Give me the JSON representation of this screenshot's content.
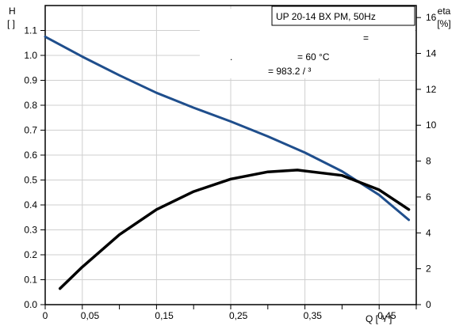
{
  "chart_data": {
    "type": "line",
    "title": "UP 20-14 BX PM, 50Hz",
    "info_lines": [
      "=",
      ".",
      "= 60 °C",
      "= 983.2   / ³"
    ],
    "y_left_label": [
      "H",
      "[  ]"
    ],
    "y_right_label": [
      "eta",
      "[%]"
    ],
    "x_axis_label": "Q [  ³/  ]",
    "x_tick_labels": [
      "0",
      "0,05",
      "0,15",
      "0,25",
      "0,35",
      "0,45"
    ],
    "x_tick_values": [
      0,
      0.05,
      0.15,
      0.25,
      0.35,
      0.45
    ],
    "xlim": [
      0,
      0.5
    ],
    "y_left_ticks": [
      "0.0",
      "0.1",
      "0.2",
      "0.3",
      "0.4",
      "0.5",
      "0.6",
      "0.7",
      "0.8",
      "0.9",
      "1.0",
      "1.1"
    ],
    "y_left_tick_values": [
      0,
      0.1,
      0.2,
      0.3,
      0.4,
      0.5,
      0.6,
      0.7,
      0.8,
      0.9,
      1.0,
      1.1
    ],
    "ylim_left": [
      0,
      1.2
    ],
    "y_right_ticks": [
      "0",
      "2",
      "4",
      "6",
      "8",
      "10",
      "12",
      "14",
      "16"
    ],
    "y_right_tick_values": [
      0,
      2,
      4,
      6,
      8,
      10,
      12,
      14,
      16
    ],
    "ylim_right": [
      0,
      16.67
    ],
    "grid": true,
    "series": [
      {
        "axis": "left",
        "color": "#1f4e8c",
        "x": [
          0,
          0.05,
          0.1,
          0.15,
          0.2,
          0.25,
          0.3,
          0.35,
          0.4,
          0.45,
          0.49
        ],
        "values": [
          1.075,
          0.995,
          0.92,
          0.85,
          0.79,
          0.735,
          0.675,
          0.61,
          0.535,
          0.44,
          0.34
        ]
      },
      {
        "axis": "right",
        "color": "#000000",
        "x": [
          0.02,
          0.05,
          0.1,
          0.15,
          0.2,
          0.25,
          0.3,
          0.34,
          0.4,
          0.45,
          0.49
        ],
        "values": [
          0.9,
          2.1,
          3.9,
          5.3,
          6.3,
          7.0,
          7.4,
          7.5,
          7.2,
          6.4,
          5.3
        ]
      }
    ]
  }
}
